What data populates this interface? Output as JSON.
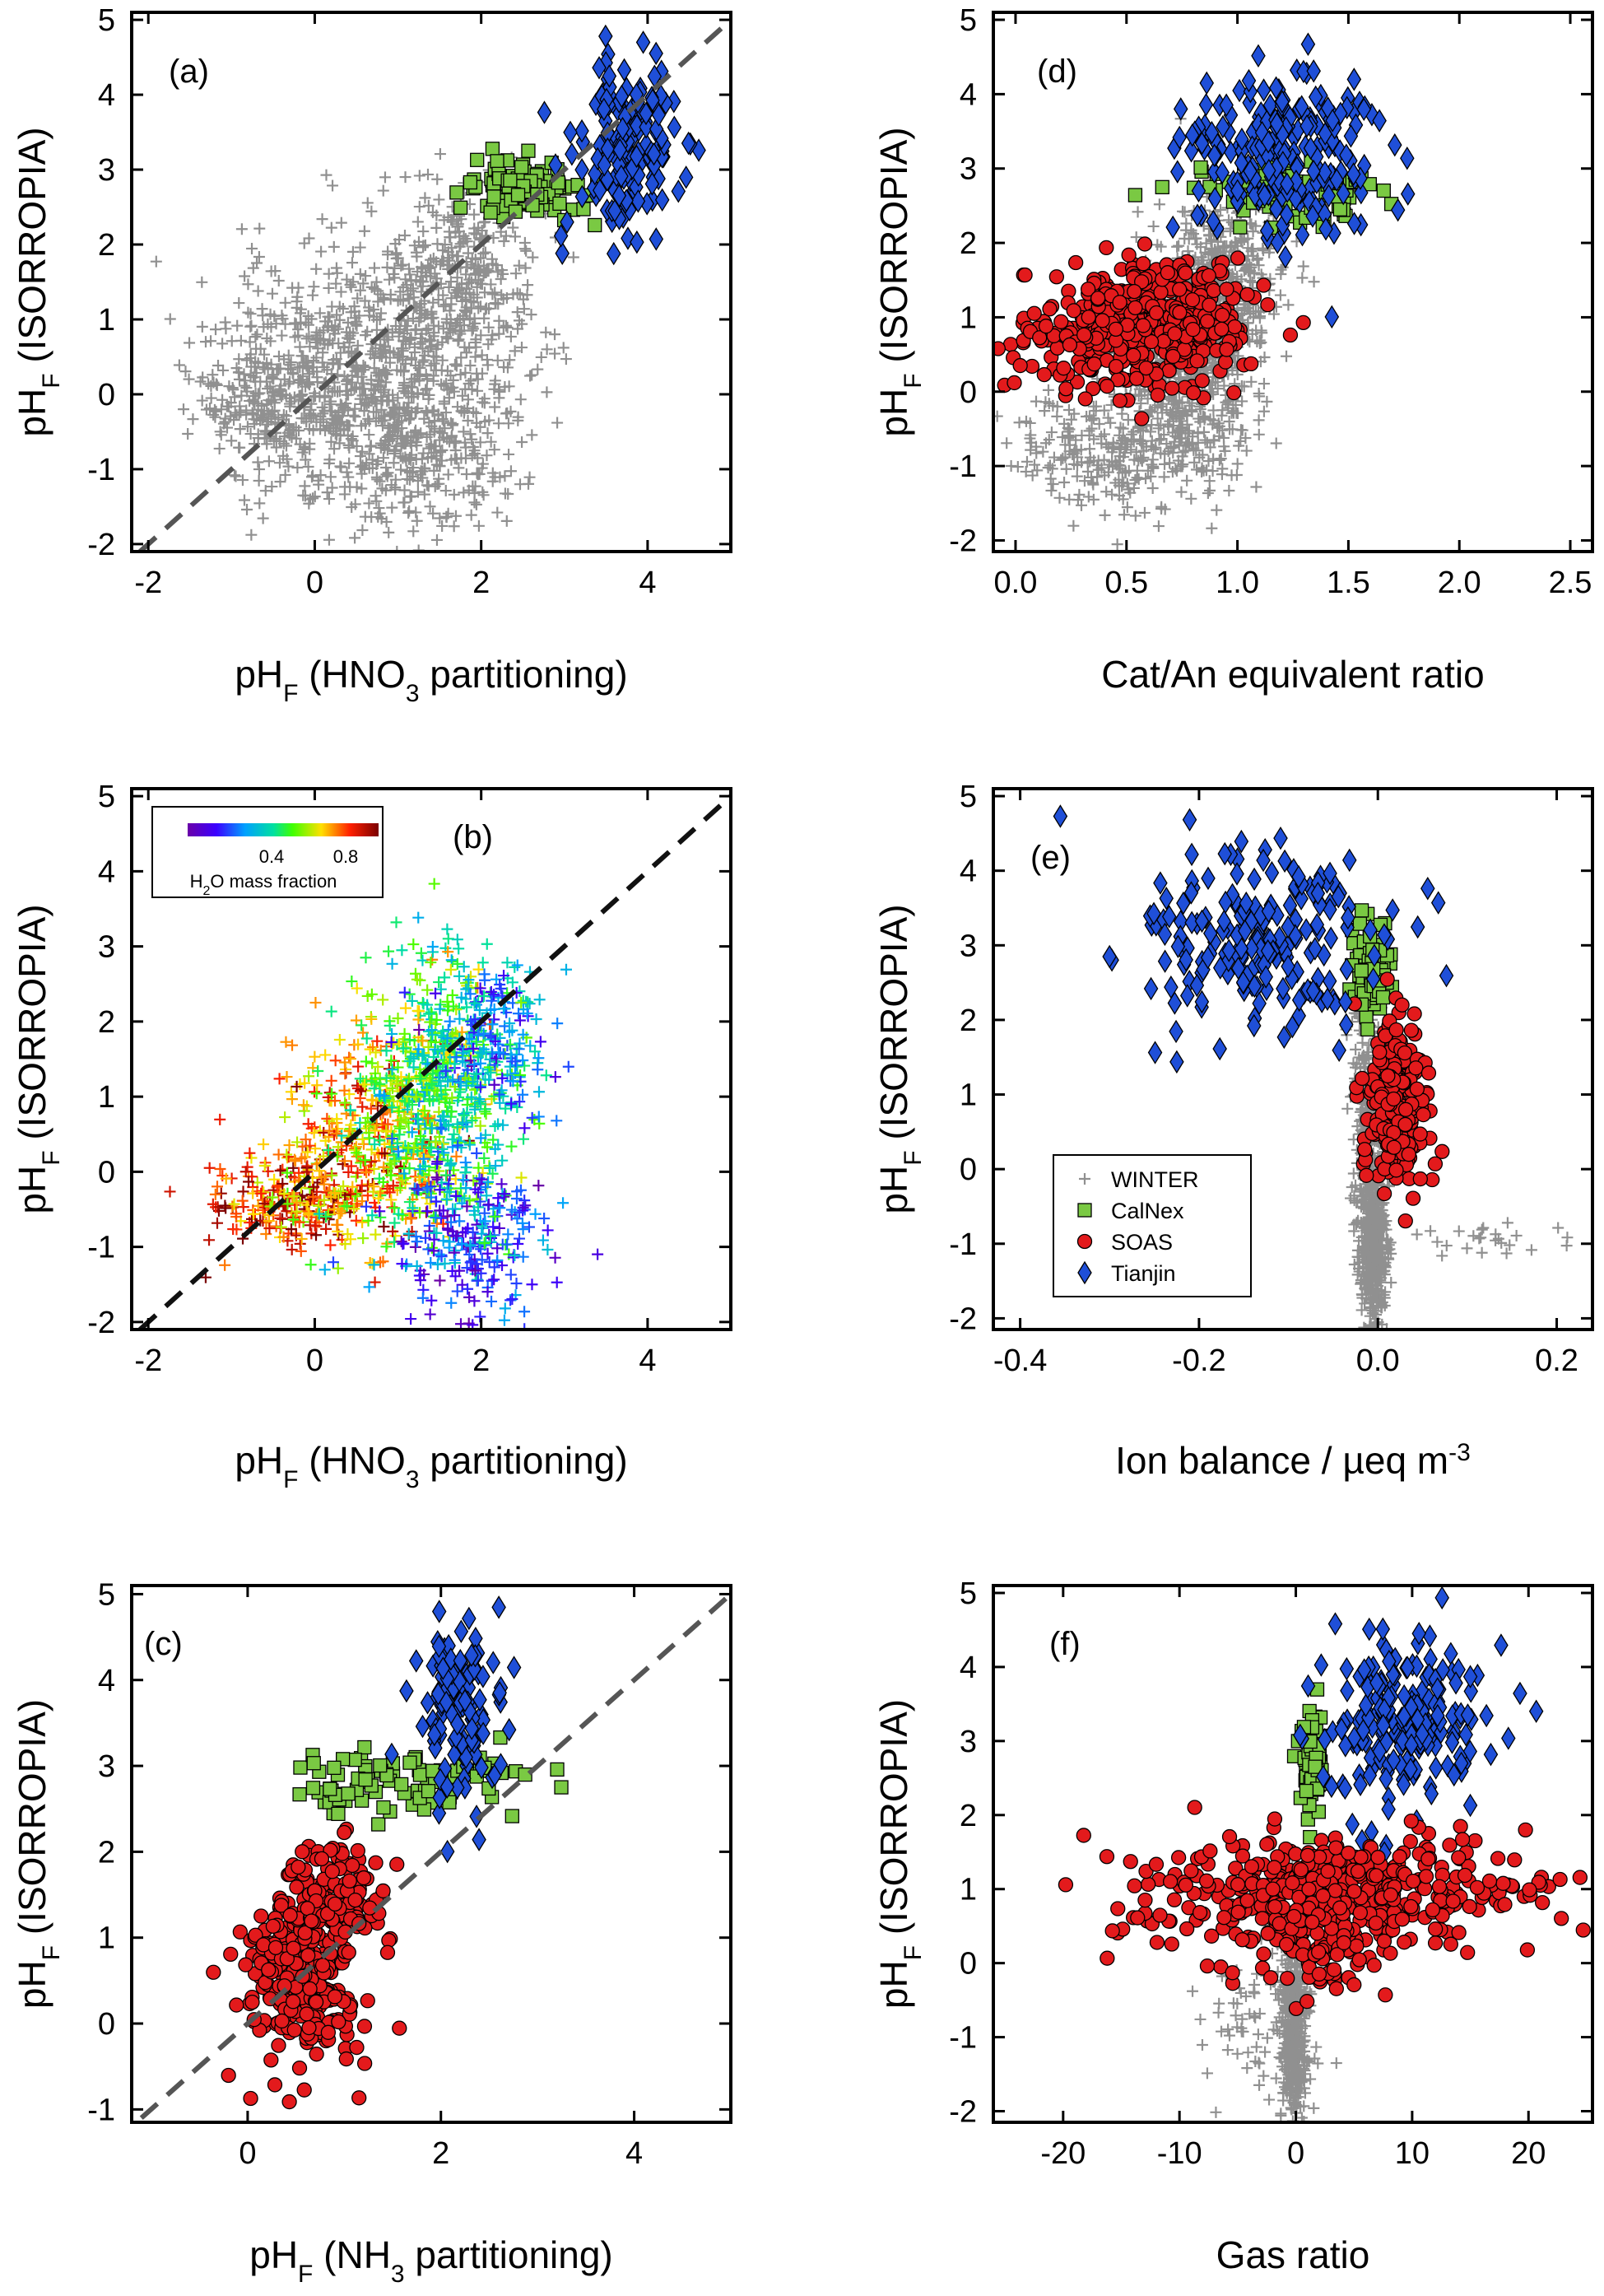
{
  "figure": {
    "colors": {
      "WINTER": "#909090",
      "CalNex": "#7ac943",
      "SOAS": "#e31a1c",
      "Tianjin": "#1f4fd8",
      "dashed_line_light": "#555555",
      "dashed_line_dark": "#111111"
    }
  },
  "chart_data": [
    {
      "id": "a",
      "panel_label": "(a)",
      "type": "scatter",
      "xlabel": {
        "main": "pH",
        "sub": "F",
        "rest": " (HNO",
        "sub2": "3",
        "rest2": " partitioning)"
      },
      "ylabel": {
        "main": "pH",
        "sub": "F",
        "rest": " (ISORROPIA)"
      },
      "xlim": [
        -2.2,
        5.0
      ],
      "ylim": [
        -2.1,
        5.1
      ],
      "xticks": [
        -2,
        0,
        2,
        4
      ],
      "yticks": [
        -2,
        -1,
        0,
        1,
        2,
        3,
        4,
        5
      ],
      "one_to_one_line": {
        "from": [
          -2.1,
          -2.1
        ],
        "to": [
          5.0,
          5.0
        ],
        "style": "dashed",
        "color": "dashed_line_light"
      },
      "series": [
        {
          "name": "WINTER",
          "marker": "plus",
          "clusters": [
            {
              "cx": 0.5,
              "cy": 0.4,
              "sx": 0.9,
              "sy": 0.8,
              "n": 700,
              "seed": 11
            },
            {
              "cx": 1.2,
              "cy": -0.7,
              "sx": 0.6,
              "sy": 0.6,
              "n": 350,
              "seed": 12
            },
            {
              "cx": 1.6,
              "cy": 1.6,
              "sx": 0.5,
              "sy": 0.6,
              "n": 300,
              "seed": 13
            },
            {
              "cx": -0.6,
              "cy": -0.2,
              "sx": 0.4,
              "sy": 0.35,
              "n": 150,
              "seed": 14
            }
          ]
        },
        {
          "name": "CalNex",
          "marker": "square",
          "clusters": [
            {
              "cx": 2.5,
              "cy": 2.75,
              "sx": 0.35,
              "sy": 0.2,
              "n": 110,
              "seed": 21
            }
          ]
        },
        {
          "name": "Tianjin",
          "marker": "diamond",
          "clusters": [
            {
              "cx": 3.75,
              "cy": 3.3,
              "sx": 0.3,
              "sy": 0.6,
              "n": 170,
              "seed": 31
            }
          ]
        }
      ]
    },
    {
      "id": "b",
      "panel_label": "(b)",
      "type": "scatter",
      "xlabel": {
        "main": "pH",
        "sub": "F",
        "rest": " (HNO",
        "sub2": "3",
        "rest2": " partitioning)"
      },
      "ylabel": {
        "main": "pH",
        "sub": "F",
        "rest": " (ISORROPIA)"
      },
      "xlim": [
        -2.2,
        5.0
      ],
      "ylim": [
        -2.1,
        5.1
      ],
      "xticks": [
        -2,
        0,
        2,
        4
      ],
      "yticks": [
        -2,
        -1,
        0,
        1,
        2,
        3,
        4,
        5
      ],
      "one_to_one_line": {
        "from": [
          -2.1,
          -2.1
        ],
        "to": [
          5.0,
          5.0
        ],
        "style": "dashed",
        "color": "dashed_line_dark"
      },
      "colorbar": {
        "label_main": "H",
        "label_sub": "2",
        "label_rest": "O mass fraction",
        "ticks": [
          "0.4",
          "0.8"
        ],
        "colormap": "rainbow"
      },
      "series": [
        {
          "name": "WINTER (colored by H2O mass fraction)",
          "marker": "plus",
          "clusters": [
            {
              "cx": -0.3,
              "cy": -0.4,
              "sx": 0.5,
              "sy": 0.3,
              "n": 200,
              "seed": 41,
              "c": 0.85
            },
            {
              "cx": 0.5,
              "cy": 0.3,
              "sx": 0.5,
              "sy": 0.7,
              "n": 350,
              "seed": 42,
              "c": 0.75
            },
            {
              "cx": 1.2,
              "cy": 0.8,
              "sx": 0.4,
              "sy": 0.9,
              "n": 300,
              "seed": 43,
              "c": 0.55
            },
            {
              "cx": 1.7,
              "cy": 1.2,
              "sx": 0.4,
              "sy": 0.8,
              "n": 300,
              "seed": 44,
              "c": 0.45
            },
            {
              "cx": 1.9,
              "cy": -0.9,
              "sx": 0.45,
              "sy": 0.5,
              "n": 250,
              "seed": 45,
              "c": 0.2
            },
            {
              "cx": 2.2,
              "cy": 1.8,
              "sx": 0.35,
              "sy": 0.5,
              "n": 150,
              "seed": 46,
              "c": 0.3
            }
          ]
        }
      ]
    },
    {
      "id": "c",
      "panel_label": "(c)",
      "type": "scatter",
      "xlabel": {
        "main": "pH",
        "sub": "F",
        "rest": " (NH",
        "sub2": "3",
        "rest2": " partitioning)"
      },
      "ylabel": {
        "main": "pH",
        "sub": "F",
        "rest": " (ISORROPIA)"
      },
      "xlim": [
        -1.2,
        5.0
      ],
      "ylim": [
        -1.15,
        5.1
      ],
      "xticks": [
        0,
        2,
        4
      ],
      "yticks": [
        -1,
        0,
        1,
        2,
        3,
        4,
        5
      ],
      "one_to_one_line": {
        "from": [
          -1.1,
          -1.1
        ],
        "to": [
          5.0,
          5.0
        ],
        "style": "dashed",
        "color": "dashed_line_light"
      },
      "series": [
        {
          "name": "CalNex",
          "marker": "square",
          "clusters": [
            {
              "cx": 1.5,
              "cy": 2.8,
              "sx": 0.6,
              "sy": 0.2,
              "n": 90,
              "seed": 51
            }
          ]
        },
        {
          "name": "Tianjin",
          "marker": "diamond",
          "clusters": [
            {
              "cx": 2.15,
              "cy": 3.7,
              "sx": 0.25,
              "sy": 0.5,
              "n": 130,
              "seed": 61
            }
          ]
        },
        {
          "name": "SOAS",
          "marker": "circle",
          "clusters": [
            {
              "cx": 0.55,
              "cy": 0.6,
              "sx": 0.3,
              "sy": 0.5,
              "n": 300,
              "seed": 71
            },
            {
              "cx": 0.9,
              "cy": 1.5,
              "sx": 0.25,
              "sy": 0.35,
              "n": 130,
              "seed": 72
            }
          ]
        }
      ]
    },
    {
      "id": "d",
      "panel_label": "(d)",
      "type": "scatter",
      "xlabel": {
        "main": "Cat/An equivalent ratio"
      },
      "ylabel": {
        "main": "pH",
        "sub": "F",
        "rest": " (ISORROPIA)"
      },
      "xlim": [
        -0.1,
        2.6
      ],
      "ylim": [
        -2.15,
        5.1
      ],
      "xticks": [
        "0.0",
        "0.5",
        "1.0",
        "1.5",
        "2.0",
        "2.5"
      ],
      "yticks": [
        -2,
        -1,
        0,
        1,
        2,
        3,
        4,
        5
      ],
      "series": [
        {
          "name": "WINTER",
          "marker": "plus",
          "clusters": [
            {
              "cx": 0.8,
              "cy": 0.5,
              "sx": 0.15,
              "sy": 0.8,
              "n": 700,
              "seed": 81
            },
            {
              "cx": 0.4,
              "cy": -0.8,
              "sx": 0.25,
              "sy": 0.4,
              "n": 250,
              "seed": 82
            },
            {
              "cx": 0.95,
              "cy": 1.7,
              "sx": 0.12,
              "sy": 0.5,
              "n": 250,
              "seed": 83
            }
          ]
        },
        {
          "name": "CalNex",
          "marker": "square",
          "clusters": [
            {
              "cx": 1.2,
              "cy": 2.7,
              "sx": 0.25,
              "sy": 0.2,
              "n": 90,
              "seed": 91
            }
          ]
        },
        {
          "name": "SOAS",
          "marker": "circle",
          "clusters": [
            {
              "cx": 0.65,
              "cy": 0.95,
              "sx": 0.2,
              "sy": 0.45,
              "n": 420,
              "seed": 101
            },
            {
              "cx": 0.2,
              "cy": 0.7,
              "sx": 0.2,
              "sy": 0.3,
              "n": 60,
              "seed": 102
            }
          ]
        },
        {
          "name": "Tianjin",
          "marker": "diamond",
          "clusters": [
            {
              "cx": 1.2,
              "cy": 3.3,
              "sx": 0.22,
              "sy": 0.55,
              "n": 230,
              "seed": 111
            }
          ]
        }
      ]
    },
    {
      "id": "e",
      "panel_label": "(e)",
      "type": "scatter",
      "xlabel": {
        "main": "Ion balance / µeq m",
        "sup": "-3"
      },
      "ylabel": {
        "main": "pH",
        "sub": "F",
        "rest": " (ISORROPIA)"
      },
      "xlim": [
        -0.43,
        0.24
      ],
      "ylim": [
        -2.15,
        5.1
      ],
      "xticks": [
        "-0.4",
        "-0.2",
        "0.0",
        "0.2"
      ],
      "yticks": [
        -2,
        -1,
        0,
        1,
        2,
        3,
        4,
        5
      ],
      "legend": {
        "position": "bottom-left",
        "entries": [
          "WINTER",
          "CalNex",
          "SOAS",
          "Tianjin"
        ]
      },
      "series": [
        {
          "name": "WINTER",
          "marker": "plus",
          "clusters": [
            {
              "cx": -0.005,
              "cy": -1.0,
              "sx": 0.008,
              "sy": 0.6,
              "n": 500,
              "seed": 121
            },
            {
              "cx": -0.01,
              "cy": 0.8,
              "sx": 0.01,
              "sy": 0.8,
              "n": 250,
              "seed": 122
            },
            {
              "cx": 0.12,
              "cy": -0.95,
              "sx": 0.05,
              "sy": 0.12,
              "n": 25,
              "seed": 123
            }
          ]
        },
        {
          "name": "CalNex",
          "marker": "square",
          "clusters": [
            {
              "cx": -0.01,
              "cy": 2.7,
              "sx": 0.01,
              "sy": 0.3,
              "n": 90,
              "seed": 131
            }
          ]
        },
        {
          "name": "SOAS",
          "marker": "circle",
          "clusters": [
            {
              "cx": 0.02,
              "cy": 0.9,
              "sx": 0.018,
              "sy": 0.6,
              "n": 240,
              "seed": 141
            }
          ]
        },
        {
          "name": "Tianjin",
          "marker": "diamond",
          "clusters": [
            {
              "cx": -0.13,
              "cy": 3.1,
              "sx": 0.07,
              "sy": 0.6,
              "n": 200,
              "seed": 151
            }
          ]
        }
      ]
    },
    {
      "id": "f",
      "panel_label": "(f)",
      "type": "scatter",
      "xlabel": {
        "main": "Gas ratio"
      },
      "ylabel": {
        "main": "pH",
        "sub": "F",
        "rest": " (ISORROPIA)"
      },
      "xlim": [
        -26,
        25.5
      ],
      "ylim": [
        -2.15,
        5.1
      ],
      "xticks": [
        "-20",
        "-10",
        "0",
        "10",
        "20"
      ],
      "yticks": [
        -2,
        -1,
        0,
        1,
        2,
        3,
        4,
        5
      ],
      "series": [
        {
          "name": "WINTER",
          "marker": "plus",
          "clusters": [
            {
              "cx": -0.2,
              "cy": -0.8,
              "sx": 0.6,
              "sy": 0.7,
              "n": 500,
              "seed": 161
            },
            {
              "cx": -3.0,
              "cy": -0.7,
              "sx": 2.5,
              "sy": 0.5,
              "n": 80,
              "seed": 162
            }
          ]
        },
        {
          "name": "CalNex",
          "marker": "square",
          "clusters": [
            {
              "cx": 1.5,
              "cy": 2.8,
              "sx": 0.5,
              "sy": 0.35,
              "n": 80,
              "seed": 171
            }
          ]
        },
        {
          "name": "Tianjin",
          "marker": "diamond",
          "clusters": [
            {
              "cx": 9.5,
              "cy": 3.3,
              "sx": 3.5,
              "sy": 0.6,
              "n": 200,
              "seed": 181
            }
          ]
        },
        {
          "name": "SOAS",
          "marker": "circle",
          "clusters": [
            {
              "cx": 4.0,
              "cy": 0.95,
              "sx": 9.0,
              "sy": 0.4,
              "n": 420,
              "seed": 191
            },
            {
              "cx": 1.5,
              "cy": 0.6,
              "sx": 2.0,
              "sy": 0.5,
              "n": 120,
              "seed": 192
            }
          ]
        }
      ]
    }
  ]
}
